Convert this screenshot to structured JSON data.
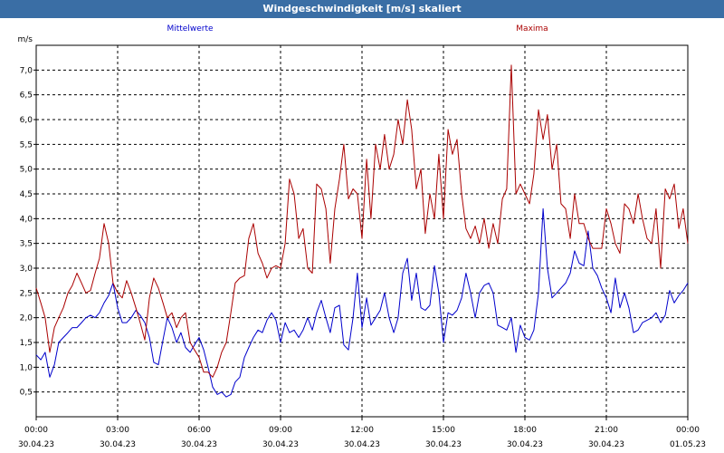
{
  "window": {
    "title": "Windgeschwindigkeit [m/s] skaliert"
  },
  "chart_data": {
    "type": "line",
    "title": "Windgeschwindigkeit [m/s] skaliert",
    "ylabel": "m/s",
    "xlabel": "",
    "ylim": [
      0,
      7.5
    ],
    "yticks": [
      "0,5",
      "1,0",
      "1,5",
      "2,0",
      "2,5",
      "3,0",
      "3,5",
      "4,0",
      "4,5",
      "5,0",
      "5,5",
      "6,0",
      "6,5",
      "7,0"
    ],
    "xlim_hours": [
      0,
      24
    ],
    "xticks": [
      {
        "time": "00:00",
        "date": "30.04.23"
      },
      {
        "time": "03:00",
        "date": "30.04.23"
      },
      {
        "time": "06:00",
        "date": "30.04.23"
      },
      {
        "time": "09:00",
        "date": "30.04.23"
      },
      {
        "time": "12:00",
        "date": "30.04.23"
      },
      {
        "time": "15:00",
        "date": "30.04.23"
      },
      {
        "time": "18:00",
        "date": "30.04.23"
      },
      {
        "time": "21:00",
        "date": "30.04.23"
      },
      {
        "time": "00:00",
        "date": "01.05.23"
      }
    ],
    "grid": true,
    "legend_position": "top",
    "series": [
      {
        "name": "Mittelwerte",
        "color": "#0000cc",
        "points": [
          [
            0.0,
            1.25
          ],
          [
            0.17,
            1.15
          ],
          [
            0.33,
            1.3
          ],
          [
            0.5,
            0.8
          ],
          [
            0.67,
            1.05
          ],
          [
            0.83,
            1.5
          ],
          [
            1.0,
            1.6
          ],
          [
            1.17,
            1.7
          ],
          [
            1.33,
            1.8
          ],
          [
            1.5,
            1.8
          ],
          [
            1.67,
            1.9
          ],
          [
            1.83,
            2.0
          ],
          [
            2.0,
            2.05
          ],
          [
            2.17,
            2.0
          ],
          [
            2.33,
            2.1
          ],
          [
            2.5,
            2.3
          ],
          [
            2.67,
            2.45
          ],
          [
            2.83,
            2.7
          ],
          [
            3.0,
            2.2
          ],
          [
            3.17,
            1.9
          ],
          [
            3.33,
            1.9
          ],
          [
            3.5,
            2.0
          ],
          [
            3.67,
            2.15
          ],
          [
            3.83,
            2.05
          ],
          [
            4.0,
            1.9
          ],
          [
            4.17,
            1.6
          ],
          [
            4.33,
            1.1
          ],
          [
            4.5,
            1.05
          ],
          [
            4.67,
            1.55
          ],
          [
            4.83,
            2.0
          ],
          [
            5.0,
            1.8
          ],
          [
            5.17,
            1.5
          ],
          [
            5.33,
            1.7
          ],
          [
            5.5,
            1.4
          ],
          [
            5.67,
            1.3
          ],
          [
            5.83,
            1.45
          ],
          [
            6.0,
            1.6
          ],
          [
            6.17,
            1.35
          ],
          [
            6.33,
            1.0
          ],
          [
            6.5,
            0.6
          ],
          [
            6.67,
            0.45
          ],
          [
            6.83,
            0.5
          ],
          [
            7.0,
            0.4
          ],
          [
            7.17,
            0.45
          ],
          [
            7.33,
            0.7
          ],
          [
            7.5,
            0.8
          ],
          [
            7.67,
            1.2
          ],
          [
            7.83,
            1.4
          ],
          [
            8.0,
            1.6
          ],
          [
            8.17,
            1.75
          ],
          [
            8.33,
            1.7
          ],
          [
            8.5,
            1.95
          ],
          [
            8.67,
            2.1
          ],
          [
            8.83,
            1.95
          ],
          [
            9.0,
            1.5
          ],
          [
            9.17,
            1.9
          ],
          [
            9.33,
            1.7
          ],
          [
            9.5,
            1.75
          ],
          [
            9.67,
            1.6
          ],
          [
            9.83,
            1.75
          ],
          [
            10.0,
            2.0
          ],
          [
            10.17,
            1.75
          ],
          [
            10.33,
            2.1
          ],
          [
            10.5,
            2.35
          ],
          [
            10.67,
            2.0
          ],
          [
            10.83,
            1.7
          ],
          [
            11.0,
            2.2
          ],
          [
            11.17,
            2.25
          ],
          [
            11.33,
            1.45
          ],
          [
            11.5,
            1.35
          ],
          [
            11.67,
            2.0
          ],
          [
            11.83,
            2.9
          ],
          [
            12.0,
            1.8
          ],
          [
            12.17,
            2.4
          ],
          [
            12.33,
            1.85
          ],
          [
            12.5,
            2.0
          ],
          [
            12.67,
            2.15
          ],
          [
            12.83,
            2.5
          ],
          [
            13.0,
            2.0
          ],
          [
            13.17,
            1.7
          ],
          [
            13.33,
            2.0
          ],
          [
            13.5,
            2.9
          ],
          [
            13.67,
            3.2
          ],
          [
            13.83,
            2.35
          ],
          [
            14.0,
            2.9
          ],
          [
            14.17,
            2.2
          ],
          [
            14.33,
            2.15
          ],
          [
            14.5,
            2.25
          ],
          [
            14.67,
            3.05
          ],
          [
            14.83,
            2.5
          ],
          [
            15.0,
            1.5
          ],
          [
            15.17,
            2.1
          ],
          [
            15.33,
            2.05
          ],
          [
            15.5,
            2.15
          ],
          [
            15.67,
            2.4
          ],
          [
            15.83,
            2.9
          ],
          [
            16.0,
            2.5
          ],
          [
            16.17,
            2.0
          ],
          [
            16.33,
            2.5
          ],
          [
            16.5,
            2.65
          ],
          [
            16.67,
            2.7
          ],
          [
            16.83,
            2.5
          ],
          [
            17.0,
            1.85
          ],
          [
            17.17,
            1.8
          ],
          [
            17.33,
            1.75
          ],
          [
            17.5,
            2.0
          ],
          [
            17.67,
            1.3
          ],
          [
            17.83,
            1.85
          ],
          [
            18.0,
            1.6
          ],
          [
            18.17,
            1.55
          ],
          [
            18.33,
            1.75
          ],
          [
            18.5,
            2.5
          ],
          [
            18.67,
            4.2
          ],
          [
            18.83,
            3.0
          ],
          [
            19.0,
            2.4
          ],
          [
            19.17,
            2.5
          ],
          [
            19.33,
            2.6
          ],
          [
            19.5,
            2.7
          ],
          [
            19.67,
            2.9
          ],
          [
            19.83,
            3.35
          ],
          [
            20.0,
            3.1
          ],
          [
            20.17,
            3.05
          ],
          [
            20.33,
            3.75
          ],
          [
            20.5,
            3.0
          ],
          [
            20.67,
            2.85
          ],
          [
            20.83,
            2.6
          ],
          [
            21.0,
            2.4
          ],
          [
            21.17,
            2.1
          ],
          [
            21.33,
            2.8
          ],
          [
            21.5,
            2.2
          ],
          [
            21.67,
            2.5
          ],
          [
            21.83,
            2.2
          ],
          [
            22.0,
            1.7
          ],
          [
            22.17,
            1.75
          ],
          [
            22.33,
            1.9
          ],
          [
            22.5,
            1.95
          ],
          [
            22.67,
            2.0
          ],
          [
            22.83,
            2.1
          ],
          [
            23.0,
            1.9
          ],
          [
            23.17,
            2.05
          ],
          [
            23.33,
            2.55
          ],
          [
            23.5,
            2.3
          ],
          [
            23.67,
            2.45
          ],
          [
            23.83,
            2.55
          ],
          [
            24.0,
            2.7
          ]
        ]
      },
      {
        "name": "Maxima",
        "color": "#aa0000",
        "points": [
          [
            0.0,
            2.6
          ],
          [
            0.17,
            2.3
          ],
          [
            0.33,
            2.0
          ],
          [
            0.5,
            1.3
          ],
          [
            0.67,
            1.8
          ],
          [
            0.83,
            2.0
          ],
          [
            1.0,
            2.2
          ],
          [
            1.17,
            2.5
          ],
          [
            1.33,
            2.65
          ],
          [
            1.5,
            2.9
          ],
          [
            1.67,
            2.7
          ],
          [
            1.83,
            2.5
          ],
          [
            2.0,
            2.55
          ],
          [
            2.17,
            2.9
          ],
          [
            2.33,
            3.2
          ],
          [
            2.5,
            3.9
          ],
          [
            2.67,
            3.5
          ],
          [
            2.83,
            2.7
          ],
          [
            3.0,
            2.5
          ],
          [
            3.17,
            2.4
          ],
          [
            3.33,
            2.75
          ],
          [
            3.5,
            2.5
          ],
          [
            3.67,
            2.2
          ],
          [
            3.83,
            1.9
          ],
          [
            4.0,
            1.55
          ],
          [
            4.17,
            2.4
          ],
          [
            4.33,
            2.8
          ],
          [
            4.5,
            2.6
          ],
          [
            4.67,
            2.3
          ],
          [
            4.83,
            2.0
          ],
          [
            5.0,
            2.1
          ],
          [
            5.17,
            1.8
          ],
          [
            5.33,
            2.0
          ],
          [
            5.5,
            2.1
          ],
          [
            5.67,
            1.5
          ],
          [
            5.83,
            1.35
          ],
          [
            6.0,
            1.2
          ],
          [
            6.17,
            0.9
          ],
          [
            6.33,
            0.9
          ],
          [
            6.5,
            0.8
          ],
          [
            6.67,
            1.0
          ],
          [
            6.83,
            1.3
          ],
          [
            7.0,
            1.5
          ],
          [
            7.17,
            2.1
          ],
          [
            7.33,
            2.7
          ],
          [
            7.5,
            2.8
          ],
          [
            7.67,
            2.85
          ],
          [
            7.83,
            3.6
          ],
          [
            8.0,
            3.9
          ],
          [
            8.17,
            3.3
          ],
          [
            8.33,
            3.1
          ],
          [
            8.5,
            2.8
          ],
          [
            8.67,
            3.0
          ],
          [
            8.83,
            3.05
          ],
          [
            9.0,
            3.0
          ],
          [
            9.17,
            3.5
          ],
          [
            9.33,
            4.8
          ],
          [
            9.5,
            4.5
          ],
          [
            9.67,
            3.6
          ],
          [
            9.83,
            3.8
          ],
          [
            10.0,
            3.0
          ],
          [
            10.17,
            2.9
          ],
          [
            10.33,
            4.7
          ],
          [
            10.5,
            4.6
          ],
          [
            10.67,
            4.2
          ],
          [
            10.83,
            3.1
          ],
          [
            11.0,
            4.2
          ],
          [
            11.17,
            4.8
          ],
          [
            11.33,
            5.5
          ],
          [
            11.5,
            4.4
          ],
          [
            11.67,
            4.6
          ],
          [
            11.83,
            4.5
          ],
          [
            12.0,
            3.6
          ],
          [
            12.17,
            5.2
          ],
          [
            12.33,
            4.0
          ],
          [
            12.5,
            5.5
          ],
          [
            12.67,
            5.0
          ],
          [
            12.83,
            5.7
          ],
          [
            13.0,
            5.0
          ],
          [
            13.17,
            5.3
          ],
          [
            13.33,
            6.0
          ],
          [
            13.5,
            5.5
          ],
          [
            13.67,
            6.4
          ],
          [
            13.83,
            5.8
          ],
          [
            14.0,
            4.6
          ],
          [
            14.17,
            5.0
          ],
          [
            14.33,
            3.7
          ],
          [
            14.5,
            4.5
          ],
          [
            14.67,
            4.0
          ],
          [
            14.83,
            5.3
          ],
          [
            15.0,
            4.0
          ],
          [
            15.17,
            5.8
          ],
          [
            15.33,
            5.3
          ],
          [
            15.5,
            5.6
          ],
          [
            15.67,
            4.5
          ],
          [
            15.83,
            3.8
          ],
          [
            16.0,
            3.6
          ],
          [
            16.17,
            3.85
          ],
          [
            16.33,
            3.5
          ],
          [
            16.5,
            4.0
          ],
          [
            16.67,
            3.4
          ],
          [
            16.83,
            3.9
          ],
          [
            17.0,
            3.5
          ],
          [
            17.17,
            4.4
          ],
          [
            17.33,
            4.6
          ],
          [
            17.5,
            7.1
          ],
          [
            17.67,
            4.5
          ],
          [
            17.83,
            4.7
          ],
          [
            18.0,
            4.5
          ],
          [
            18.17,
            4.3
          ],
          [
            18.33,
            4.9
          ],
          [
            18.5,
            6.2
          ],
          [
            18.67,
            5.6
          ],
          [
            18.83,
            6.1
          ],
          [
            19.0,
            5.0
          ],
          [
            19.17,
            5.5
          ],
          [
            19.33,
            4.3
          ],
          [
            19.5,
            4.2
          ],
          [
            19.67,
            3.6
          ],
          [
            19.83,
            4.5
          ],
          [
            20.0,
            3.9
          ],
          [
            20.17,
            3.9
          ],
          [
            20.33,
            3.6
          ],
          [
            20.5,
            3.4
          ],
          [
            20.67,
            3.4
          ],
          [
            20.83,
            3.4
          ],
          [
            21.0,
            4.2
          ],
          [
            21.17,
            3.9
          ],
          [
            21.33,
            3.5
          ],
          [
            21.5,
            3.3
          ],
          [
            21.67,
            4.3
          ],
          [
            21.83,
            4.2
          ],
          [
            22.0,
            3.9
          ],
          [
            22.17,
            4.5
          ],
          [
            22.33,
            4.0
          ],
          [
            22.5,
            3.6
          ],
          [
            22.67,
            3.5
          ],
          [
            22.83,
            4.2
          ],
          [
            23.0,
            3.0
          ],
          [
            23.17,
            4.6
          ],
          [
            23.33,
            4.4
          ],
          [
            23.5,
            4.7
          ],
          [
            23.67,
            3.8
          ],
          [
            23.83,
            4.2
          ],
          [
            24.0,
            3.5
          ]
        ]
      }
    ]
  }
}
